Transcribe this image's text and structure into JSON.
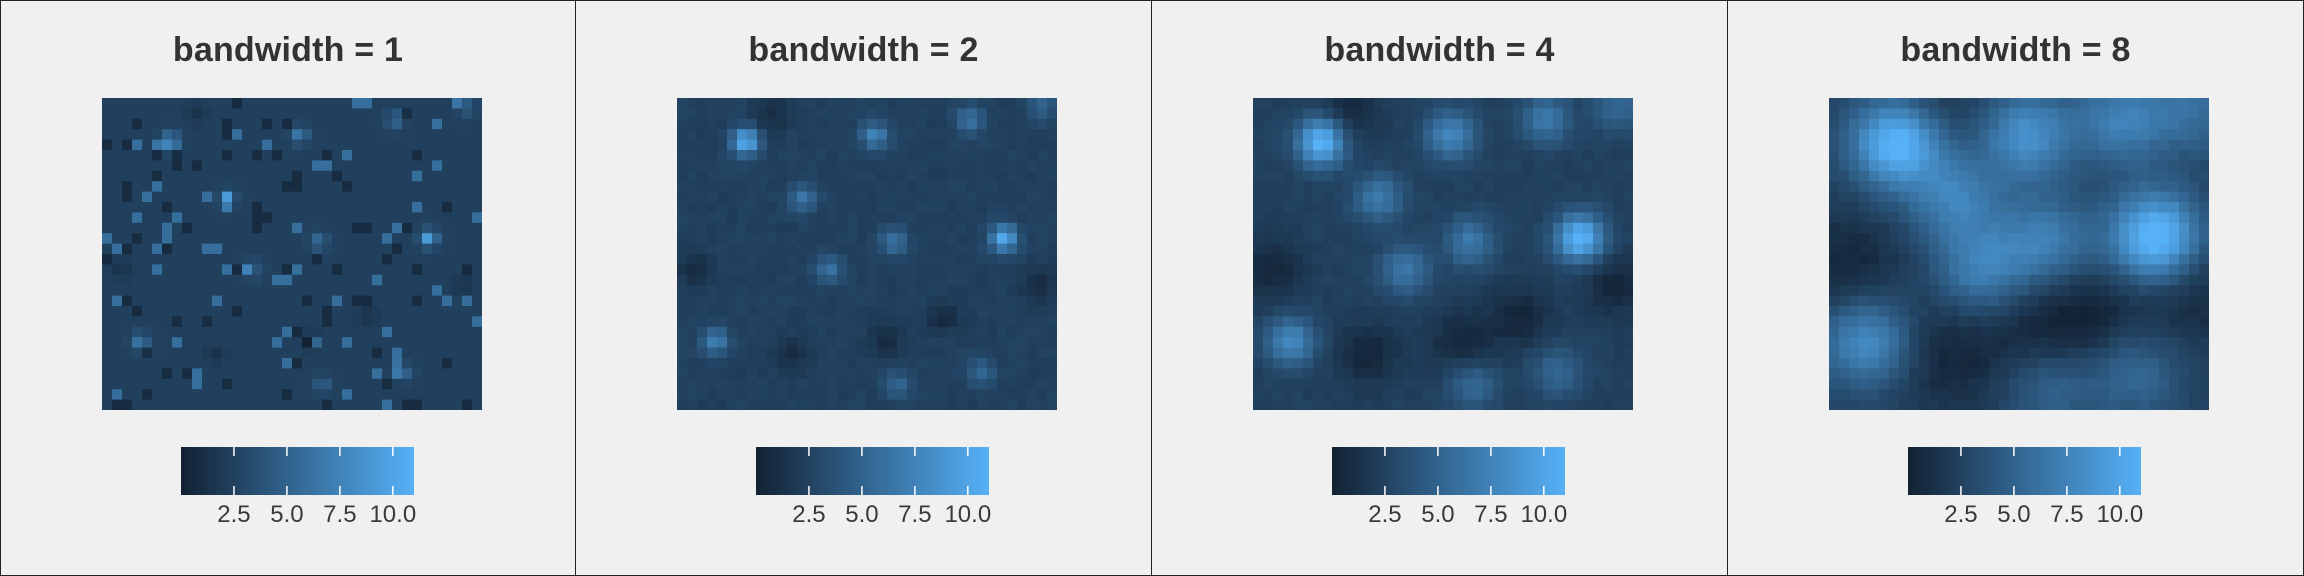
{
  "chart_data": {
    "type": "heatmap",
    "grid_cols": 38,
    "grid_rows": 30,
    "color_scale": {
      "low": "#122133",
      "high": "#56b1f7",
      "min": 0,
      "max": 11
    },
    "colorbar_ticks": [
      2.5,
      5.0,
      7.5,
      10.0
    ],
    "colorbar_tick_labels": [
      "2.5",
      "5.0",
      "7.5",
      "10.0"
    ],
    "hotspots": [
      {
        "x": 0.18,
        "y": 0.14,
        "w": 10.0
      },
      {
        "x": 0.33,
        "y": 0.32,
        "w": 6.0
      },
      {
        "x": 0.52,
        "y": 0.12,
        "w": 7.0
      },
      {
        "x": 0.86,
        "y": 0.45,
        "w": 10.0
      },
      {
        "x": 0.4,
        "y": 0.55,
        "w": 6.0
      },
      {
        "x": 0.57,
        "y": 0.46,
        "w": 6.0
      },
      {
        "x": 0.77,
        "y": 0.07,
        "w": 6.0
      },
      {
        "x": 0.1,
        "y": 0.78,
        "w": 7.0
      },
      {
        "x": 0.58,
        "y": 0.92,
        "w": 5.0
      },
      {
        "x": 0.8,
        "y": 0.88,
        "w": 5.0
      },
      {
        "x": 0.96,
        "y": 0.03,
        "w": 5.0
      }
    ],
    "lowspots": [
      {
        "x": 0.3,
        "y": 0.82
      },
      {
        "x": 0.55,
        "y": 0.78
      },
      {
        "x": 0.7,
        "y": 0.7
      },
      {
        "x": 0.05,
        "y": 0.55
      },
      {
        "x": 0.95,
        "y": 0.6
      },
      {
        "x": 0.25,
        "y": 0.05
      }
    ],
    "panels": [
      {
        "title": "bandwidth = 1",
        "bandwidth": 1
      },
      {
        "title": "bandwidth = 2",
        "bandwidth": 2
      },
      {
        "title": "bandwidth = 4",
        "bandwidth": 4
      },
      {
        "title": "bandwidth = 8",
        "bandwidth": 8
      }
    ]
  }
}
